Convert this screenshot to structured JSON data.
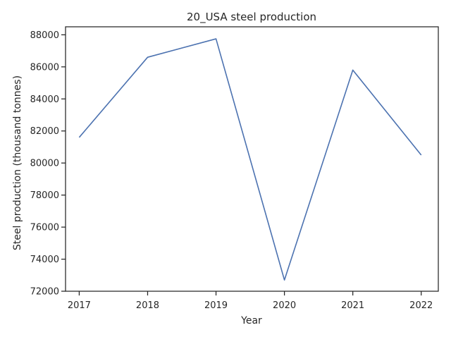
{
  "chart_data": {
    "type": "line",
    "title": "20_USA steel production",
    "xlabel": "Year",
    "ylabel": "Steel production (thousand tonnes)",
    "x": [
      2017,
      2018,
      2019,
      2020,
      2021,
      2022
    ],
    "series": [
      {
        "values": [
          81600,
          86600,
          87750,
          72700,
          85800,
          80500
        ]
      }
    ],
    "xlim": [
      2016.8,
      2022.25
    ],
    "ylim": [
      72000,
      88500
    ],
    "xticks": [
      "2017",
      "2018",
      "2019",
      "2020",
      "2021",
      "2022"
    ],
    "yticks": [
      "72000",
      "74000",
      "76000",
      "78000",
      "80000",
      "82000",
      "84000",
      "86000",
      "88000"
    ],
    "grid": false,
    "colors": {
      "line": "#4c72b0",
      "axes": "#262626"
    }
  }
}
